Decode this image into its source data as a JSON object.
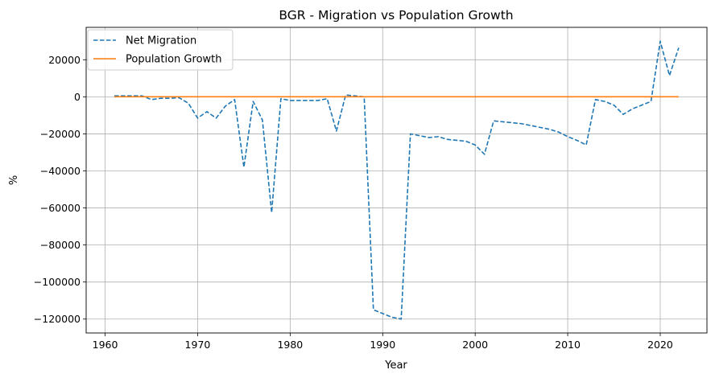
{
  "chart_data": {
    "type": "line",
    "title": "BGR - Migration vs Population Growth",
    "xlabel": "Year",
    "ylabel": "%",
    "xlim": [
      1957.95,
      2025.05
    ],
    "ylim": [
      -127500,
      37500
    ],
    "xticks": [
      1960,
      1970,
      1980,
      1990,
      2000,
      2010,
      2020
    ],
    "yticks": [
      -120000,
      -100000,
      -80000,
      -60000,
      -40000,
      -20000,
      0,
      20000
    ],
    "ytick_labels": [
      "−120000",
      "−100000",
      "−80000",
      "−60000",
      "−40000",
      "−20000",
      "0",
      "20000"
    ],
    "grid": true,
    "legend_position": "top-left",
    "series": [
      {
        "name": "Net Migration",
        "color": "#1f77b4",
        "style": "dashed",
        "x": [
          1961,
          1962,
          1963,
          1964,
          1965,
          1966,
          1967,
          1968,
          1969,
          1970,
          1971,
          1972,
          1973,
          1974,
          1975,
          1976,
          1977,
          1978,
          1979,
          1980,
          1981,
          1982,
          1983,
          1984,
          1985,
          1986,
          1987,
          1988,
          1989,
          1990,
          1991,
          1992,
          1993,
          1994,
          1995,
          1996,
          1997,
          1998,
          1999,
          2000,
          2001,
          2002,
          2003,
          2004,
          2005,
          2006,
          2007,
          2008,
          2009,
          2010,
          2011,
          2012,
          2013,
          2014,
          2015,
          2016,
          2017,
          2018,
          2019,
          2020,
          2021,
          2022
        ],
        "values": [
          500,
          500,
          500,
          500,
          -1500,
          -800,
          -800,
          -500,
          -3500,
          -11500,
          -8000,
          -11500,
          -5000,
          -1500,
          -38000,
          -2500,
          -12500,
          -62500,
          -1000,
          -2000,
          -2000,
          -2000,
          -2000,
          -1000,
          -18500,
          1000,
          500,
          0,
          -115000,
          -117000,
          -119000,
          -120000,
          -20000,
          -21000,
          -22000,
          -21500,
          -23000,
          -23500,
          -24000,
          -26000,
          -31000,
          -13000,
          -13500,
          -14000,
          -14500,
          -15500,
          -16500,
          -17500,
          -19000,
          -21500,
          -23500,
          -26000,
          -1500,
          -2500,
          -4500,
          -9500,
          -6500,
          -4500,
          -2500,
          30000,
          11500,
          26500
        ]
      },
      {
        "name": "Population Growth",
        "color": "#ff7f0e",
        "style": "solid",
        "x": [
          1961,
          2022
        ],
        "values": [
          0,
          0
        ]
      }
    ]
  }
}
